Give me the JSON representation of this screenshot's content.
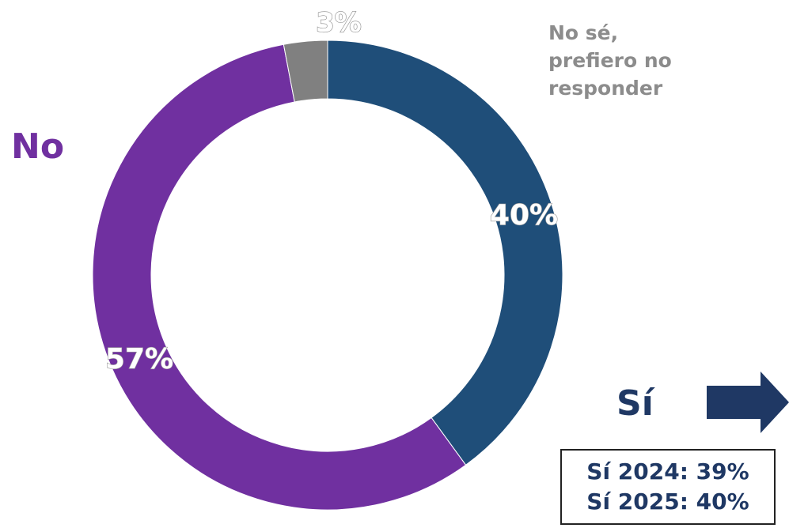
{
  "chart_data": {
    "type": "pie",
    "donut": true,
    "slices": [
      {
        "category": "Sí",
        "value": 40,
        "label": "40%",
        "color": "#1f4e79"
      },
      {
        "category": "No",
        "value": 57,
        "label": "57%",
        "color": "#7030a0"
      },
      {
        "category": "No sé, prefiero no responder",
        "value": 3,
        "label": "3%",
        "color": "#808080"
      }
    ]
  },
  "legend": {
    "unsure_lines": [
      "No sé,",
      "prefiero no",
      "responder"
    ],
    "no": "No",
    "si": "Sí"
  },
  "comparison": {
    "line1": "Sí 2024: 39%",
    "line2": "Sí 2025: 40%"
  },
  "colors": {
    "si": "#1f4e79",
    "no": "#7030a0",
    "unsure": "#808080",
    "arrow": "#1f3864"
  },
  "icons": {
    "arrow": "arrow-right-icon"
  }
}
